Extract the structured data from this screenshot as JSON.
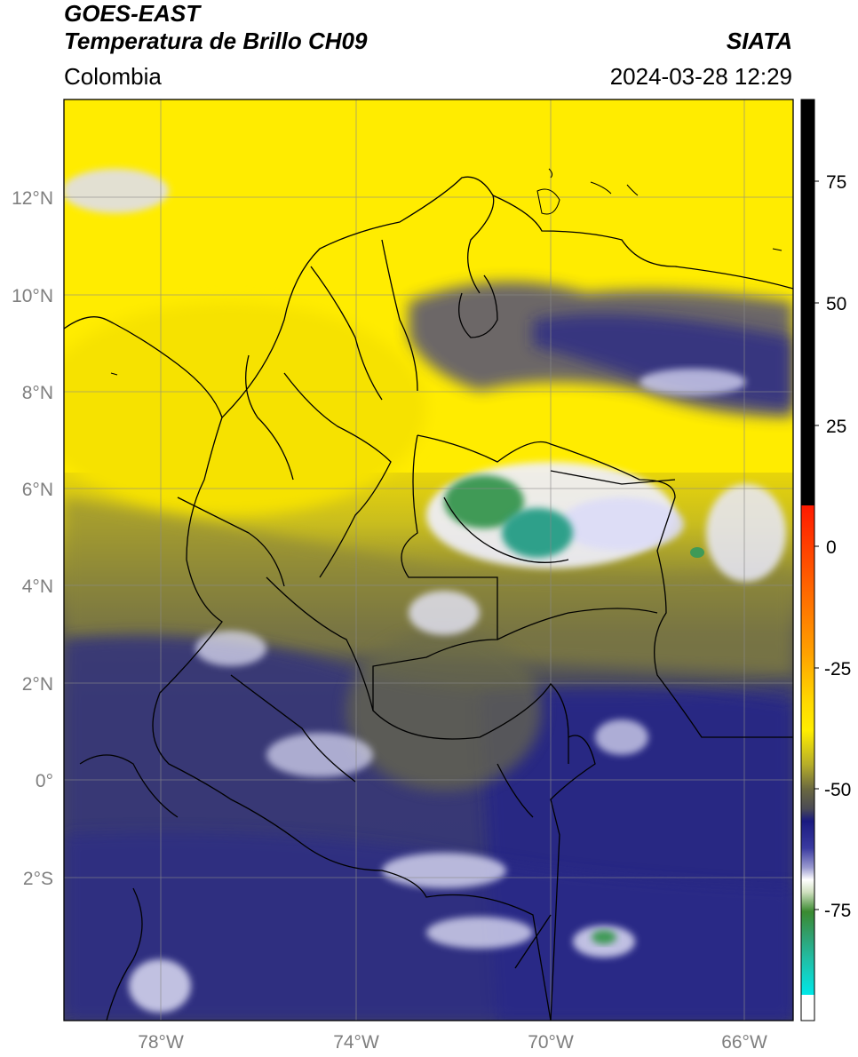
{
  "header": {
    "satellite": "GOES-EAST",
    "product": "Temperatura de Brillo CH09",
    "region": "Colombia",
    "source": "SIATA",
    "datetime": "2024-03-28 12:29"
  },
  "axes": {
    "lat_labels": [
      "12°N",
      "10°N",
      "8°N",
      "6°N",
      "4°N",
      "2°N",
      "0°",
      "2°S"
    ],
    "lon_labels": [
      "78°W",
      "74°W",
      "70°W",
      "66°W"
    ]
  },
  "colorbar": {
    "ticks": [
      "75",
      "50",
      "25",
      "0",
      "-25",
      "-50",
      "-75"
    ],
    "colors": {
      "black": "#000000",
      "red": "#ff1a00",
      "orange": "#ff8c00",
      "yellow": "#ffee00",
      "olive": "#8f8a2c",
      "gray": "#4a4a55",
      "navy": "#1a1a80",
      "white": "#ffffff",
      "green": "#3a8a30",
      "teal": "#20b090",
      "cyan": "#00e0e0"
    }
  },
  "map": {
    "colors": {
      "yellow": "#ffec00",
      "olive": "#7a7840",
      "gray": "#4c4d5e",
      "navy": "#23238a",
      "white": "#f0f0ff",
      "green": "#3f9a57",
      "teal": "#2fa08a",
      "border": "#000000",
      "grid": "#8a8a8a"
    }
  }
}
